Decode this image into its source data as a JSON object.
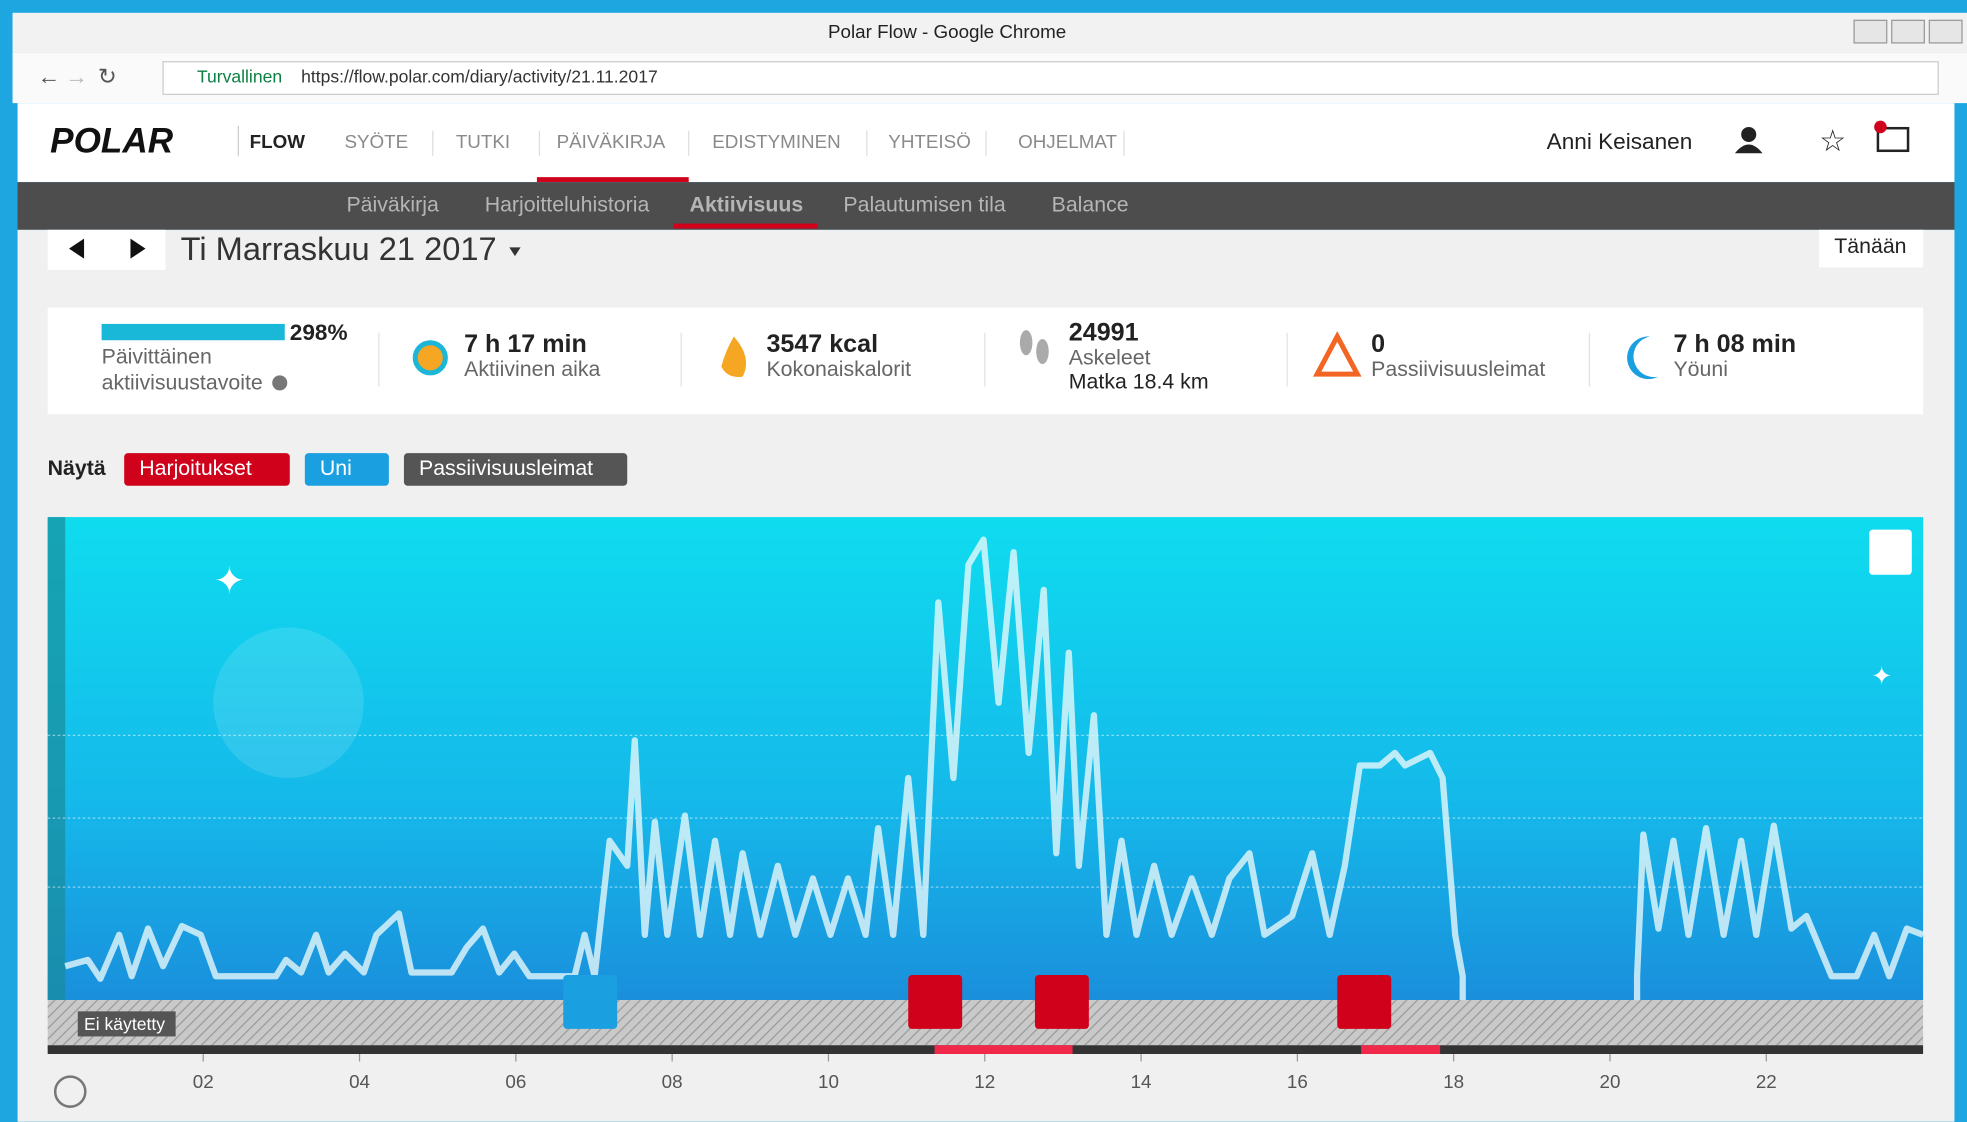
{
  "browser": {
    "title": "Polar Flow - Google Chrome",
    "secure_label": "Turvallinen",
    "url": "https://flow.polar.com/diary/activity/21.11.2017"
  },
  "nav": {
    "logo": "POLAR",
    "brand": "FLOW",
    "items": [
      "SYÖTE",
      "TUTKI",
      "PÄIVÄKIRJA",
      "EDISTYMINEN",
      "YHTEISÖ",
      "OHJELMAT"
    ],
    "user": "Anni Keisanen"
  },
  "subnav": [
    "Päiväkirja",
    "Harjoitteluhistoria",
    "Aktiivisuus",
    "Palautumisen tila",
    "Balance"
  ],
  "date": "Ti Marraskuu 21 2017",
  "today_button": "Tänään",
  "summary": {
    "goal_percent": "298%",
    "goal_label": [
      "Päivittäinen",
      "aktiivisuustavoite"
    ],
    "active_time": {
      "value": "7 h 17 min",
      "label": "Aktiivinen aika"
    },
    "calories": {
      "value": "3547 kcal",
      "label": "Kokonaiskalorit"
    },
    "steps": {
      "value": "24991",
      "label": "Askeleet",
      "distance": "Matka 18.4 km"
    },
    "inactivity": {
      "value": "0",
      "label": "Passiivisuusleimat"
    },
    "sleep": {
      "value": "7 h 08 min",
      "label": "Yöuni"
    }
  },
  "filters": {
    "label": "Näytä",
    "items": [
      "Harjoitukset",
      "Uni",
      "Passiivisuusleimat"
    ]
  },
  "timeline": {
    "not_worn": "Ei käytetty",
    "hours": [
      "02",
      "04",
      "06",
      "08",
      "10",
      "12",
      "14",
      "16",
      "18",
      "20",
      "22"
    ]
  }
}
